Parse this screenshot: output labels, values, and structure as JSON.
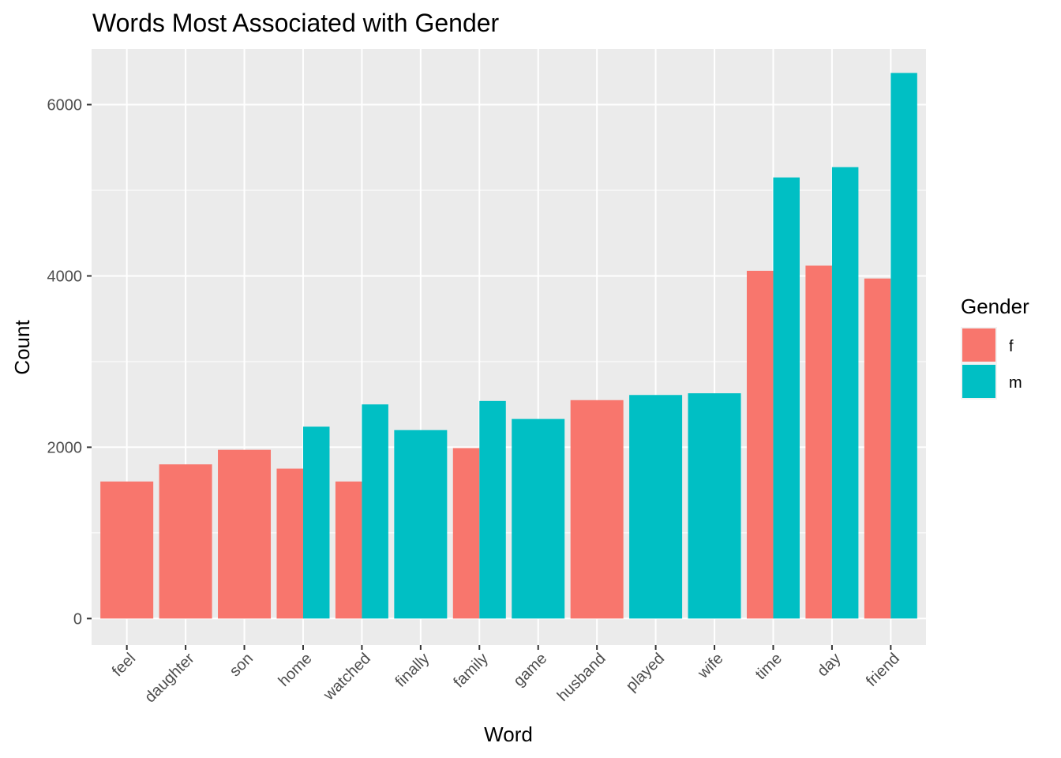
{
  "chart_data": {
    "type": "bar",
    "title": "Words Most Associated with Gender",
    "xlabel": "Word",
    "ylabel": "Count",
    "categories": [
      "feel",
      "daughter",
      "son",
      "home",
      "watched",
      "finally",
      "family",
      "game",
      "husband",
      "played",
      "wife",
      "time",
      "day",
      "friend"
    ],
    "series": [
      {
        "name": "f",
        "color": "#F8766D",
        "values": [
          1600,
          1800,
          1970,
          1750,
          1600,
          null,
          1990,
          null,
          2550,
          null,
          null,
          4060,
          4120,
          3970
        ]
      },
      {
        "name": "m",
        "color": "#00BFC4",
        "values": [
          null,
          null,
          null,
          2240,
          2500,
          2200,
          2540,
          2330,
          null,
          2610,
          2630,
          5150,
          5270,
          6370
        ]
      }
    ],
    "ylim": [
      -310,
      6650
    ],
    "yticks": [
      0,
      2000,
      4000,
      6000
    ],
    "ytick_labels": [
      "0",
      "2000",
      "4000",
      "6000"
    ],
    "legend": {
      "title": "Gender",
      "position": "right",
      "entries": [
        "f",
        "m"
      ]
    },
    "grid": true,
    "panel_background": "#EBEBEB",
    "grid_color": "#FFFFFF"
  }
}
